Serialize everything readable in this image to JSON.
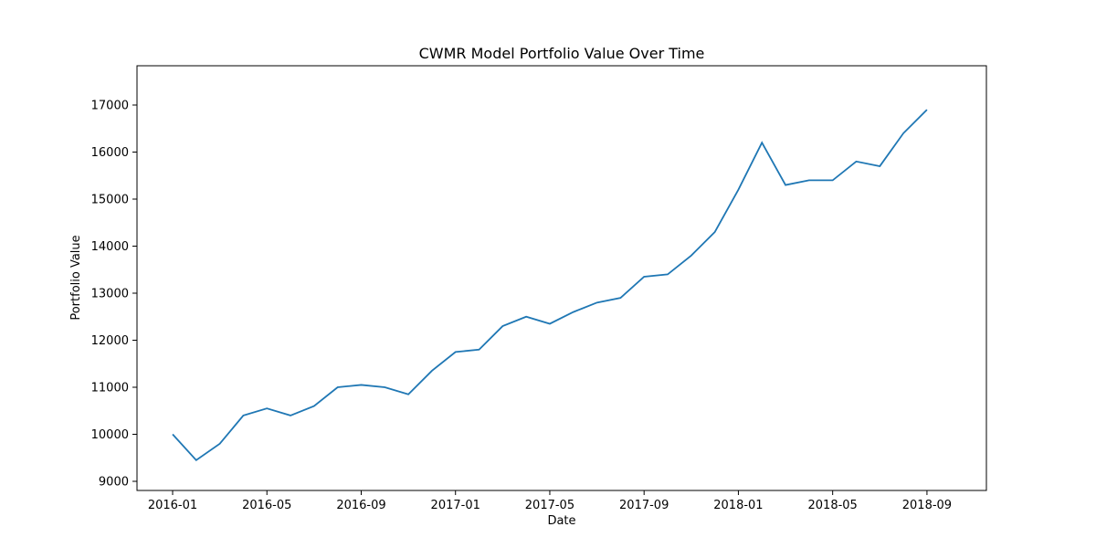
{
  "chart_data": {
    "type": "line",
    "title": "CWMR Model Portfolio Value Over Time",
    "x_label": "Date",
    "y_label": "Portfolio Value",
    "x": [
      "2016-01",
      "2016-02",
      "2016-03",
      "2016-04",
      "2016-05",
      "2016-06",
      "2016-07",
      "2016-08",
      "2016-09",
      "2016-10",
      "2016-11",
      "2016-12",
      "2017-01",
      "2017-02",
      "2017-03",
      "2017-04",
      "2017-05",
      "2017-06",
      "2017-07",
      "2017-08",
      "2017-09",
      "2017-10",
      "2017-11",
      "2017-12",
      "2018-01",
      "2018-02",
      "2018-03",
      "2018-04",
      "2018-05",
      "2018-06",
      "2018-07",
      "2018-08",
      "2018-09"
    ],
    "series": [
      {
        "name": "Portfolio Value",
        "color": "#1f77b4",
        "values": [
          10000,
          9450,
          9800,
          10400,
          10550,
          10400,
          10600,
          11000,
          11050,
          11000,
          10850,
          11350,
          11750,
          11800,
          12300,
          12500,
          12350,
          12600,
          12800,
          12900,
          13350,
          13400,
          13800,
          14300,
          15200,
          16200,
          15300,
          15400,
          15400,
          15800,
          15700,
          16400,
          16900
        ]
      }
    ],
    "xticks": [
      "2016-01",
      "2016-05",
      "2016-09",
      "2017-01",
      "2017-05",
      "2017-09",
      "2018-01",
      "2018-05",
      "2018-09"
    ],
    "ylim": [
      8806,
      17835
    ],
    "yticks": [
      9000,
      10000,
      11000,
      12000,
      13000,
      14000,
      15000,
      16000,
      17000
    ]
  }
}
